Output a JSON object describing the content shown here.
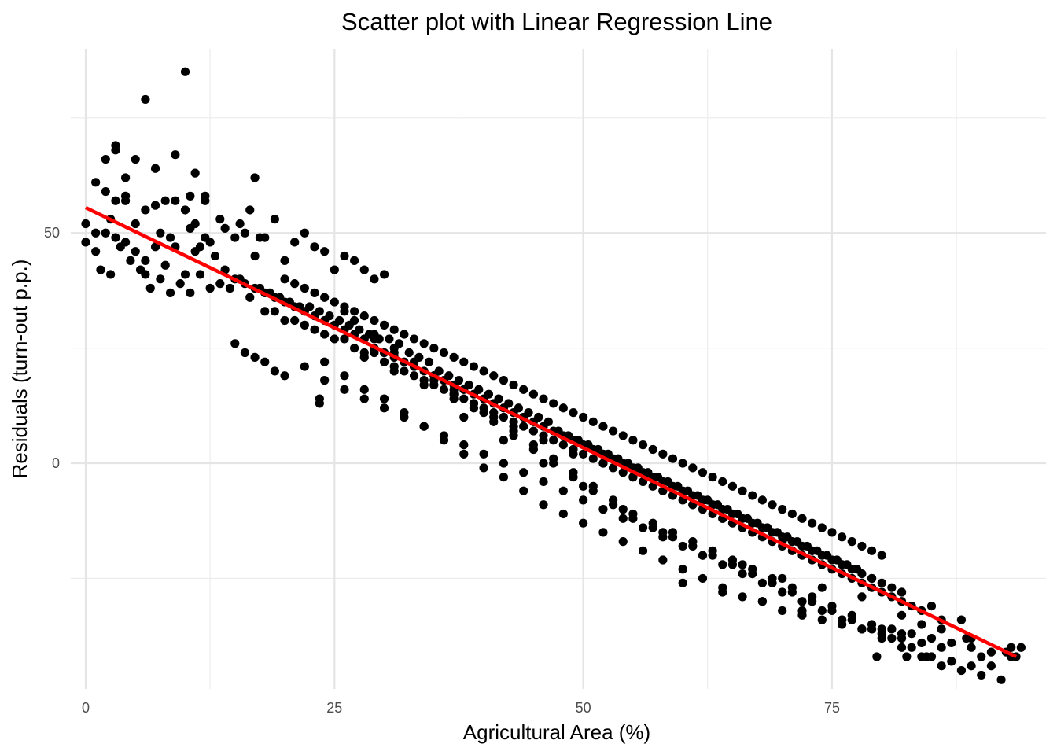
{
  "chart_data": {
    "type": "scatter",
    "title": "Scatter plot with Linear Regression Line",
    "xlabel": "Agricultural Area (%)",
    "ylabel": "Residuals (turn-out p.p.)",
    "xlim": [
      -1.5,
      96.5
    ],
    "ylim": [
      -49,
      90
    ],
    "x_ticks": [
      0,
      25,
      50,
      75
    ],
    "x_tick_labels": [
      "0",
      "25",
      "50",
      "75"
    ],
    "y_ticks": [
      0,
      50
    ],
    "y_tick_labels": [
      "0",
      "50"
    ],
    "x_minor_ticks": [
      12.5,
      37.5,
      62.5,
      87.5
    ],
    "y_minor_ticks": [
      -25,
      25,
      75
    ],
    "grid": true,
    "legend": "none",
    "series": [
      {
        "color": "#000000",
        "x": [
          2,
          3,
          3,
          4,
          4,
          5,
          6,
          7,
          9,
          10,
          10.5,
          11,
          12,
          1,
          2,
          3,
          4,
          6,
          7,
          8,
          9,
          10,
          11,
          12,
          17,
          0,
          0,
          1,
          1,
          2,
          2.5,
          3,
          3.5,
          4,
          5,
          5,
          6,
          6,
          7,
          7.5,
          8,
          8.5,
          9,
          10,
          10.5,
          11,
          11.5,
          12,
          12.5,
          13,
          13.5,
          14,
          15,
          15.5,
          16,
          16.5,
          17,
          17.5,
          18,
          19,
          20,
          21,
          22,
          23,
          24,
          25,
          26,
          27,
          28,
          29,
          30,
          1.5,
          2.5,
          4.5,
          5.5,
          6.5,
          7.5,
          8.5,
          9.5,
          10.5,
          11.5,
          12.5,
          13.5,
          14.5,
          15.5,
          16.5,
          17.5,
          18.5,
          19.5,
          20.5,
          21.5,
          22.5,
          23.5,
          24.5,
          25.5,
          26.5,
          27.5,
          28.5,
          29.5,
          30.5,
          31.5,
          32.5,
          33.5,
          34.5,
          35.5,
          36.5,
          37.5,
          38.5,
          39.5,
          40.5,
          41.5,
          42.5,
          43.5,
          44.5,
          45.5,
          46.5,
          47.5,
          48.5,
          49.5,
          50.5,
          51.5,
          52.5,
          53.5,
          54.5,
          55.5,
          56.5,
          57.5,
          58.5,
          59.5,
          60.5,
          61.5,
          62.5,
          63.5,
          64.5,
          65.5,
          66.5,
          67.5,
          68.5,
          69.5,
          70.5,
          71.5,
          72.5,
          73.5,
          74.5,
          75.5,
          76.5,
          77.5,
          14,
          15,
          16,
          17,
          18,
          19,
          20,
          21,
          22,
          23,
          24,
          25,
          26,
          27,
          28,
          29,
          30,
          31,
          32,
          33,
          34,
          35,
          36,
          37,
          38,
          39,
          40,
          41,
          42,
          43,
          44,
          45,
          46,
          47,
          48,
          49,
          50,
          51,
          52,
          53,
          54,
          55,
          56,
          57,
          58,
          59,
          60,
          61,
          62,
          63,
          64,
          65,
          66,
          67,
          68,
          69,
          70,
          71,
          72,
          73,
          74,
          75,
          76,
          77,
          78,
          79,
          80,
          81,
          82,
          18,
          19,
          20,
          21,
          22,
          23,
          24,
          25,
          26,
          27,
          28,
          29,
          30,
          31,
          32,
          33,
          34,
          35,
          36,
          37,
          38,
          39,
          40,
          41,
          42,
          43,
          44,
          45,
          46,
          47,
          48,
          49,
          50,
          51,
          52,
          53,
          54,
          55,
          56,
          57,
          58,
          59,
          60,
          61,
          62,
          63,
          64,
          65,
          66,
          67,
          68,
          69,
          70,
          71,
          72,
          73,
          74,
          75,
          76,
          77,
          78,
          79,
          80,
          81,
          82,
          83,
          84,
          20,
          21,
          22,
          23,
          24,
          25,
          26,
          27,
          28,
          29,
          30,
          31,
          32,
          33,
          34,
          35,
          36,
          37,
          38,
          39,
          40,
          41,
          42,
          43,
          44,
          45,
          46,
          47,
          48,
          49,
          50,
          51,
          52,
          53,
          54,
          55,
          56,
          57,
          58,
          59,
          60,
          61,
          62,
          63,
          64,
          65,
          66,
          67,
          68,
          69,
          70,
          71,
          72,
          73,
          74,
          75,
          76,
          77,
          78,
          79,
          80,
          24,
          26,
          28,
          30,
          32,
          34,
          36,
          38,
          40,
          42,
          44,
          46,
          48,
          50,
          52,
          54,
          56,
          58,
          60,
          62,
          64,
          66,
          68,
          70,
          72,
          74,
          76,
          78,
          80,
          82,
          84,
          28,
          31,
          34,
          37,
          40,
          43,
          46,
          49,
          52,
          55,
          58,
          61,
          64,
          67,
          70,
          73,
          76,
          79,
          82,
          85,
          88,
          23.5,
          23.5,
          29,
          31,
          33,
          35,
          37,
          39,
          41,
          43,
          45,
          47,
          49,
          51,
          53,
          55,
          57,
          59,
          61,
          63,
          65,
          67,
          69,
          71,
          73,
          75,
          77,
          79,
          81,
          83,
          85,
          87,
          89,
          91,
          93,
          26,
          27,
          29,
          31,
          33,
          35,
          37,
          39,
          41,
          43,
          45,
          47,
          49,
          51,
          53,
          55,
          57,
          59,
          61,
          63,
          65,
          67,
          69,
          71,
          73,
          75,
          77,
          79,
          81,
          83,
          85,
          87,
          89,
          91,
          93.5,
          15,
          16,
          17,
          18,
          19,
          20,
          22,
          24,
          26,
          28,
          30,
          32,
          34,
          36,
          38,
          40,
          42,
          44,
          46,
          48,
          50,
          52,
          54,
          56,
          58,
          60,
          62,
          64,
          66,
          68,
          70,
          72,
          74,
          76,
          78,
          80,
          82,
          84,
          86,
          88,
          90,
          92,
          79.5,
          82.5,
          84.5,
          86,
          88.5,
          92.5,
          93,
          94,
          82,
          84,
          86,
          89,
          60,
          64,
          68,
          72,
          76,
          80,
          38,
          42,
          46,
          50,
          54,
          58,
          62,
          66,
          70,
          74,
          78,
          82,
          86,
          90
        ],
        "y": [
          66,
          69,
          68,
          58,
          62,
          66,
          79,
          64,
          67,
          85,
          58,
          63,
          58,
          61,
          59,
          57,
          57,
          55,
          56,
          57,
          57,
          55,
          52,
          57,
          62,
          52,
          48,
          46,
          50,
          50,
          53,
          49,
          47,
          48,
          46,
          52,
          41,
          44,
          47,
          50,
          43,
          49,
          47,
          41,
          51,
          46,
          47,
          49,
          48,
          45,
          53,
          51,
          49,
          52,
          50,
          55,
          45,
          49,
          49,
          53,
          44,
          48,
          50,
          47,
          46,
          42,
          45,
          44,
          42,
          40,
          41,
          42,
          41,
          44,
          42,
          38,
          40,
          37,
          39,
          37,
          41,
          38,
          39,
          38,
          40,
          36,
          38,
          37,
          36,
          35,
          34,
          34,
          33,
          32,
          31,
          30,
          29,
          28,
          27,
          27,
          26,
          24,
          23,
          22,
          20,
          19,
          18,
          17,
          16,
          15,
          14,
          13,
          12,
          11,
          10,
          9,
          7,
          6,
          5,
          4,
          3,
          2,
          1,
          0,
          -1,
          -2,
          -3,
          -4,
          -5,
          -6,
          -7,
          -8,
          -9,
          -10,
          -11,
          -12,
          -13,
          -14,
          -15,
          -16,
          -17,
          -18,
          -19,
          -20,
          -21,
          -22,
          -23,
          42,
          40,
          39,
          38,
          37,
          36,
          35,
          34,
          33,
          32,
          31,
          30,
          29,
          28,
          27,
          25,
          24,
          23,
          22,
          21,
          20,
          19,
          18,
          17,
          16,
          15,
          14,
          13,
          12,
          11,
          10,
          9,
          8,
          7,
          6,
          5,
          4,
          3,
          2,
          1,
          0,
          -1,
          -2,
          -3,
          -4,
          -5,
          -6,
          -7,
          -8,
          -9,
          -10,
          -11,
          -12,
          -13,
          -14,
          -15,
          -16,
          -17,
          -18,
          -19,
          -20,
          -21,
          -22,
          -23,
          -24,
          -25,
          -26,
          -27,
          -28,
          33,
          33,
          31,
          31,
          30,
          29,
          28,
          27,
          27,
          25,
          24,
          24,
          22,
          21,
          20,
          19,
          18,
          17,
          16,
          15,
          14,
          13,
          12,
          11,
          10,
          9,
          8,
          7,
          6,
          5,
          4,
          3,
          2,
          1,
          0,
          -1,
          -2,
          -3,
          -4,
          -5,
          -6,
          -7,
          -8,
          -9,
          -10,
          -11,
          -12,
          -13,
          -14,
          -15,
          -16,
          -17,
          -18,
          -19,
          -20,
          -21,
          -22,
          -23,
          -24,
          -25,
          -26,
          -27,
          -28,
          -29,
          -30,
          -31,
          -32,
          40,
          39,
          38,
          37,
          36,
          35,
          34,
          33,
          32,
          31,
          30,
          29,
          28,
          27,
          26,
          25,
          24,
          23,
          22,
          21,
          20,
          19,
          18,
          17,
          16,
          15,
          14,
          13,
          12,
          11,
          10,
          9,
          8,
          7,
          6,
          5,
          4,
          3,
          2,
          1,
          0,
          -1,
          -2,
          -3,
          -4,
          -5,
          -6,
          -7,
          -8,
          -9,
          -10,
          -11,
          -12,
          -13,
          -14,
          -15,
          -16,
          -17,
          -18,
          -19,
          -20,
          22,
          19,
          16,
          14,
          11,
          8,
          5,
          2,
          -1,
          -3,
          -6,
          -9,
          -11,
          -13,
          -15,
          -17,
          -19,
          -21,
          -23,
          -25,
          -27,
          -29,
          -30,
          -32,
          -33,
          -34,
          -35,
          -36,
          -37,
          -38,
          -39,
          23,
          20,
          17,
          14,
          11,
          8,
          5,
          2,
          0,
          -3,
          -6,
          -9,
          -12,
          -15,
          -17,
          -19,
          -22,
          -25,
          -28,
          -31,
          -34,
          14,
          13,
          27,
          24,
          21,
          18,
          15,
          12,
          9,
          6,
          3,
          0,
          -3,
          -6,
          -9,
          -12,
          -14,
          -16,
          -18,
          -20,
          -22,
          -24,
          -26,
          -28,
          -30,
          -32,
          -34,
          -36,
          -38,
          -40,
          -42,
          -43,
          -44,
          -44,
          -42,
          33,
          31,
          28,
          25,
          22,
          19,
          16,
          13,
          10,
          7,
          4,
          1,
          -2,
          -5,
          -8,
          -11,
          -13,
          -15,
          -17,
          -19,
          -21,
          -23,
          -25,
          -27,
          -29,
          -31,
          -33,
          -35,
          -36,
          -37,
          -38,
          -39,
          -40,
          -41,
          -42,
          26,
          24,
          23,
          22,
          20,
          19,
          21,
          18,
          16,
          14,
          12,
          10,
          8,
          6,
          4,
          2,
          0,
          -2,
          -4,
          -6,
          -8,
          -10,
          -12,
          -14,
          -16,
          -18,
          -20,
          -22,
          -24,
          -26,
          -28,
          -30,
          -32,
          -34,
          -36,
          -38,
          -40,
          -42,
          -44,
          -45,
          -46,
          -47,
          -42,
          -42,
          -42,
          -40,
          -38,
          -41,
          -40,
          -40,
          -37,
          -35,
          -36,
          -38,
          -26,
          -28,
          -30,
          -32,
          -34,
          -36,
          10,
          5,
          0,
          -5,
          -10,
          -15,
          -20,
          -22,
          -25,
          -27,
          -29,
          -33,
          -34,
          -42
        ]
      }
    ],
    "regression_line": {
      "color": "#ff0000",
      "x": [
        0,
        93.5
      ],
      "y": [
        55.5,
        -42
      ]
    }
  }
}
